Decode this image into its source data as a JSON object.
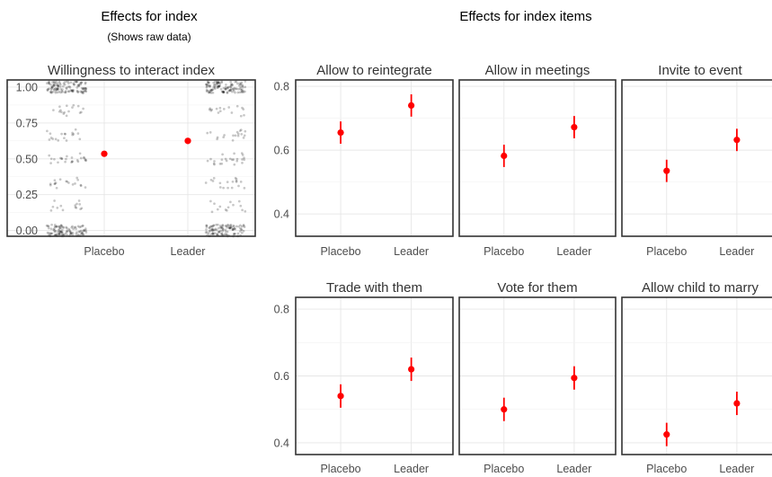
{
  "headers": {
    "index_title": "Effects for index",
    "index_subtitle": "(Shows raw data)",
    "items_title": "Effects for index items"
  },
  "colors": {
    "estimate": "#ff0000",
    "raw_points": "#000000",
    "frame": "#333333",
    "grid": "#e6e6e6"
  },
  "chart_data": [
    {
      "type": "scatter",
      "title": "Willingness to interact index",
      "categories": [
        "Placebo",
        "Leader"
      ],
      "values": [
        0.535,
        0.625
      ],
      "ci": [
        [
          0.52,
          0.55
        ],
        [
          0.61,
          0.64
        ]
      ],
      "raw_levels": [
        0,
        0.167,
        0.333,
        0.5,
        0.667,
        0.833,
        1
      ],
      "ylim": [
        -0.04,
        1.05
      ],
      "yticks": [
        "0.00",
        "0.25",
        "0.50",
        "0.75",
        "1.00"
      ],
      "ytick_values": [
        0,
        0.25,
        0.5,
        0.75,
        1.0
      ],
      "grid": true
    },
    {
      "type": "scatter",
      "title": "Allow to reintegrate",
      "categories": [
        "Placebo",
        "Leader"
      ],
      "values": [
        0.655,
        0.74
      ],
      "ci": [
        [
          0.62,
          0.69
        ],
        [
          0.705,
          0.775
        ]
      ],
      "ylim": [
        0.33,
        0.82
      ],
      "yticks": [
        "0.4",
        "0.6",
        "0.8"
      ],
      "ytick_values": [
        0.4,
        0.6,
        0.8
      ],
      "grid": true
    },
    {
      "type": "scatter",
      "title": "Allow in meetings",
      "categories": [
        "Placebo",
        "Leader"
      ],
      "values": [
        0.582,
        0.672
      ],
      "ci": [
        [
          0.547,
          0.617
        ],
        [
          0.637,
          0.707
        ]
      ],
      "ylim": [
        0.33,
        0.82
      ],
      "yticks": [
        "0.4",
        "0.6",
        "0.8"
      ],
      "ytick_values": [
        0.4,
        0.6,
        0.8
      ],
      "grid": true
    },
    {
      "type": "scatter",
      "title": "Invite to event",
      "categories": [
        "Placebo",
        "Leader"
      ],
      "values": [
        0.535,
        0.632
      ],
      "ci": [
        [
          0.5,
          0.57
        ],
        [
          0.597,
          0.667
        ]
      ],
      "ylim": [
        0.33,
        0.82
      ],
      "yticks": [
        "0.4",
        "0.6",
        "0.8"
      ],
      "ytick_values": [
        0.4,
        0.6,
        0.8
      ],
      "grid": true
    },
    {
      "type": "scatter",
      "title": "Trade with them",
      "categories": [
        "Placebo",
        "Leader"
      ],
      "values": [
        0.54,
        0.62
      ],
      "ci": [
        [
          0.505,
          0.575
        ],
        [
          0.585,
          0.655
        ]
      ],
      "ylim": [
        0.365,
        0.835
      ],
      "yticks": [
        "0.4",
        "0.6",
        "0.8"
      ],
      "ytick_values": [
        0.4,
        0.6,
        0.8
      ],
      "grid": true
    },
    {
      "type": "scatter",
      "title": "Vote for them",
      "categories": [
        "Placebo",
        "Leader"
      ],
      "values": [
        0.5,
        0.594
      ],
      "ci": [
        [
          0.465,
          0.535
        ],
        [
          0.559,
          0.629
        ]
      ],
      "ylim": [
        0.365,
        0.835
      ],
      "yticks": [
        "0.4",
        "0.6",
        "0.8"
      ],
      "ytick_values": [
        0.4,
        0.6,
        0.8
      ],
      "grid": true
    },
    {
      "type": "scatter",
      "title": "Allow child to marry",
      "categories": [
        "Placebo",
        "Leader"
      ],
      "values": [
        0.425,
        0.518
      ],
      "ci": [
        [
          0.39,
          0.46
        ],
        [
          0.483,
          0.553
        ]
      ],
      "ylim": [
        0.365,
        0.835
      ],
      "yticks": [
        "0.4",
        "0.6",
        "0.8"
      ],
      "ytick_values": [
        0.4,
        0.6,
        0.8
      ],
      "grid": true
    }
  ]
}
